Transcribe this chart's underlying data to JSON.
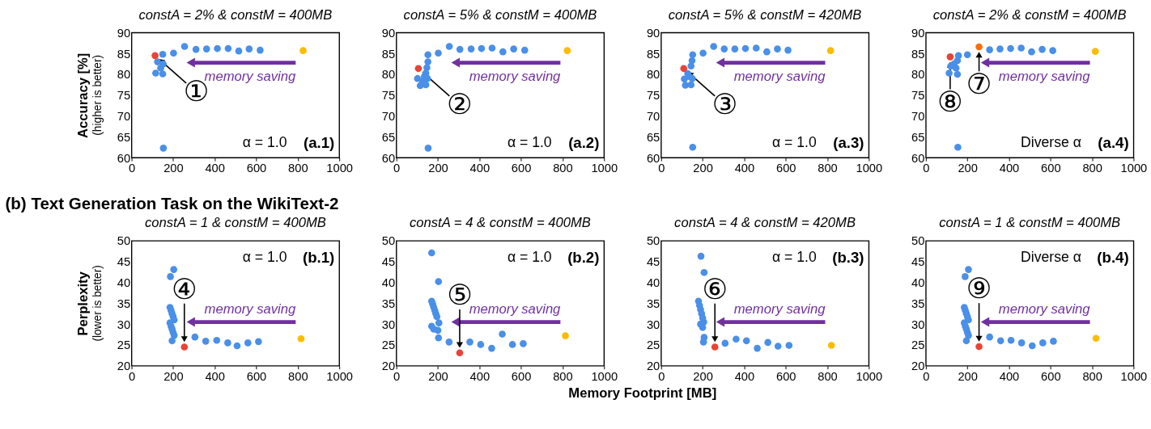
{
  "chart_data": [
    {
      "type": "scatter",
      "title": "constA = 2% & constM = 400MB",
      "ylabel": "Accuracy [%]",
      "xlim": [
        0,
        1000
      ],
      "xticks": [
        0,
        200,
        400,
        600,
        800,
        1000
      ],
      "ylim": [
        60,
        90
      ],
      "yticks": [
        60,
        65,
        70,
        75,
        80,
        85,
        90
      ],
      "marker": "circle",
      "series": [
        {
          "color": "#4a8fe8",
          "x": [
            116,
            150,
            125,
            140,
            150,
            152,
            153,
            202,
            255,
            310,
            361,
            413,
            465,
            516,
            566,
            619
          ],
          "values": [
            80.3,
            80.1,
            83,
            81.5,
            84.8,
            82.5,
            62.3,
            85.1,
            86.7,
            86.0,
            86.1,
            86.2,
            86.2,
            85.6,
            86.1,
            85.8
          ]
        },
        {
          "color": "#ea4335",
          "x": [
            113
          ],
          "values": [
            84.5
          ]
        },
        {
          "color": "#fbbc05",
          "x": [
            826
          ],
          "values": [
            85.7
          ]
        }
      ],
      "annotations": [
        "α = 1.0",
        "(a.1)",
        "memory saving",
        "(higher is better)",
        {
          "text": "①",
          "x": 113,
          "y": 84.5
        }
      ]
    },
    {
      "type": "scatter",
      "title": "constA = 5% & constM = 400MB",
      "xlim": [
        0,
        1000
      ],
      "xticks": [
        0,
        200,
        400,
        600,
        800,
        1000
      ],
      "ylim": [
        60,
        90
      ],
      "yticks": [
        60,
        65,
        70,
        75,
        80,
        85,
        90
      ],
      "marker": "circle",
      "series": [
        {
          "color": "#4a8fe8",
          "x": [
            152,
            152,
            147,
            142,
            102,
            115,
            142,
            126,
            135,
            150,
            153,
            202,
            255,
            306,
            360,
            410,
            461,
            513,
            565,
            618
          ],
          "values": [
            84.7,
            83,
            81.6,
            80.3,
            79,
            77.3,
            77.5,
            78.4,
            79.5,
            79,
            62.3,
            85.1,
            86.7,
            86,
            86.1,
            86.2,
            86.3,
            85.4,
            86.1,
            85.8
          ]
        },
        {
          "color": "#ea4335",
          "x": [
            106
          ],
          "values": [
            81.4
          ]
        },
        {
          "color": "#fbbc05",
          "x": [
            823
          ],
          "values": [
            85.7
          ]
        }
      ],
      "annotations": [
        "α = 1.0",
        "(a.2)",
        "memory saving",
        {
          "text": "②",
          "x": 106,
          "y": 81.4
        }
      ]
    },
    {
      "type": "scatter",
      "title": "constA = 5% & constM = 420MB",
      "xlim": [
        0,
        1000
      ],
      "xticks": [
        0,
        200,
        400,
        600,
        800,
        1000
      ],
      "ylim": [
        60,
        90
      ],
      "yticks": [
        60,
        65,
        70,
        75,
        80,
        85,
        90
      ],
      "marker": "circle",
      "series": [
        {
          "color": "#4a8fe8",
          "x": [
            152,
            149,
            144,
            112,
            117,
            144,
            128,
            135,
            150,
            152,
            202,
            253,
            304,
            355,
            406,
            458,
            509,
            560,
            611
          ],
          "values": [
            84.7,
            83.3,
            82,
            78.9,
            77.4,
            77.5,
            80.2,
            79.5,
            79,
            62.5,
            85.1,
            86.7,
            86.1,
            86.1,
            86.2,
            86.3,
            85.4,
            86.1,
            85.8
          ]
        },
        {
          "color": "#ea4335",
          "x": [
            109
          ],
          "values": [
            81.4
          ]
        },
        {
          "color": "#fbbc05",
          "x": [
            816
          ],
          "values": [
            85.7
          ]
        }
      ],
      "annotations": [
        "α = 1.0",
        "(a.3)",
        "memory saving",
        {
          "text": "③",
          "x": 109,
          "y": 81.4
        }
      ]
    },
    {
      "type": "scatter",
      "title": "constA = 2% & constM = 400MB",
      "xlim": [
        0,
        1000
      ],
      "xticks": [
        0,
        200,
        400,
        600,
        800,
        1000
      ],
      "ylim": [
        60,
        90
      ],
      "yticks": [
        60,
        65,
        70,
        75,
        80,
        85,
        90
      ],
      "marker": "circle",
      "series": [
        {
          "color": "#4a8fe8",
          "x": [
            112,
            152,
            152,
            136,
            145,
            157,
            120,
            154,
            200,
            307,
            357,
            408,
            459,
            509,
            560,
            611
          ],
          "values": [
            80.3,
            80,
            83.3,
            82.5,
            81.5,
            84.5,
            82,
            62.5,
            84.7,
            85.9,
            86.1,
            86.2,
            86.3,
            85.4,
            86,
            85.7
          ]
        },
        {
          "color": "#ea4335",
          "x": [
            117
          ],
          "values": [
            84.2
          ]
        },
        {
          "color": "#fa6e0a",
          "x": [
            256
          ],
          "values": [
            86.6
          ]
        },
        {
          "color": "#fbbc05",
          "x": [
            816
          ],
          "values": [
            85.5
          ]
        }
      ],
      "annotations": [
        "Diverse α",
        "(a.4)",
        "memory saving",
        {
          "text": "⑦",
          "x": 256,
          "y": 86.6
        },
        {
          "text": "⑧",
          "x": 117,
          "y": 84.2
        }
      ]
    },
    {
      "type": "scatter",
      "title": "constA = 1 & constM = 400MB",
      "ylabel": "Perplexity",
      "xlim": [
        0,
        1000
      ],
      "xticks": [
        0,
        200,
        400,
        600,
        800,
        1000
      ],
      "ylim": [
        20,
        50
      ],
      "yticks": [
        20,
        25,
        30,
        35,
        40,
        45,
        50
      ],
      "marker": "circle",
      "series": [
        {
          "color": "#4a8fe8",
          "x": [
            203,
            187,
            185,
            190,
            195,
            200,
            205,
            185,
            190,
            195,
            200,
            205,
            195,
            305,
            357,
            410,
            463,
            508,
            560,
            611
          ],
          "values": [
            43.1,
            41.4,
            34,
            33.3,
            32.5,
            31.8,
            31,
            30.3,
            29.5,
            28.8,
            28,
            27.3,
            26,
            26.9,
            25.9,
            26.1,
            25.5,
            24.8,
            25.5,
            25.8
          ]
        },
        {
          "color": "#ea4335",
          "x": [
            254
          ],
          "values": [
            24.5
          ]
        },
        {
          "color": "#fbbc05",
          "x": [
            816
          ],
          "values": [
            26.5
          ]
        }
      ],
      "annotations": [
        "α = 1.0",
        "(b.1)",
        "memory saving",
        "(lower is better)",
        "(b) Text Generation Task on the WikiText-2",
        {
          "text": "④",
          "x": 254,
          "y": 24.5
        }
      ]
    },
    {
      "type": "scatter",
      "title": "constA = 4 & constM = 400MB",
      "xlabel": "Memory Footprint [MB]",
      "xlim": [
        0,
        1000
      ],
      "xticks": [
        0,
        200,
        400,
        600,
        800,
        1000
      ],
      "ylim": [
        20,
        50
      ],
      "yticks": [
        20,
        25,
        30,
        35,
        40,
        45,
        50
      ],
      "marker": "circle",
      "series": [
        {
          "color": "#4a8fe8",
          "x": [
            170,
            203,
            170,
            175,
            180,
            185,
            190,
            195,
            205,
            170,
            180,
            200,
            203,
            254,
            354,
            406,
            459,
            510,
            559,
            611
          ],
          "values": [
            47.1,
            40.2,
            35.5,
            34.8,
            34,
            33.3,
            32.5,
            31.8,
            30.3,
            29.5,
            28.8,
            28.5,
            26.7,
            25.7,
            25.7,
            25.1,
            24.2,
            27.6,
            25.1,
            25.3
          ]
        },
        {
          "color": "#ea4335",
          "x": [
            305
          ],
          "values": [
            23.1
          ]
        },
        {
          "color": "#fbbc05",
          "x": [
            814
          ],
          "values": [
            27.2
          ]
        }
      ],
      "annotations": [
        "α = 1.0",
        "(b.2)",
        "memory saving",
        {
          "text": "⑤",
          "x": 305,
          "y": 23.1
        }
      ]
    },
    {
      "type": "scatter",
      "title": "constA = 4 & constM = 420MB",
      "xlim": [
        0,
        1000
      ],
      "xticks": [
        0,
        200,
        400,
        600,
        800,
        1000
      ],
      "ylim": [
        20,
        50
      ],
      "yticks": [
        20,
        25,
        30,
        35,
        40,
        45,
        50
      ],
      "marker": "circle",
      "series": [
        {
          "color": "#4a8fe8",
          "x": [
            192,
            207,
            180,
            185,
            190,
            195,
            200,
            205,
            190,
            200,
            207,
            204,
            308,
            361,
            411,
            463,
            514,
            563,
            616
          ],
          "values": [
            46.3,
            42.4,
            35.5,
            34.5,
            33.5,
            32.5,
            31.5,
            30.5,
            30,
            29.2,
            26.8,
            25.7,
            25.4,
            26.4,
            26,
            24.2,
            25.6,
            24.7,
            24.9
          ]
        },
        {
          "color": "#ea4335",
          "x": [
            259
          ],
          "values": [
            24.5
          ]
        },
        {
          "color": "#fbbc05",
          "x": [
            820
          ],
          "values": [
            24.9
          ]
        }
      ],
      "annotations": [
        "α = 1.0",
        "(b.3)",
        "memory saving",
        {
          "text": "⑥",
          "x": 259,
          "y": 24.5
        }
      ]
    },
    {
      "type": "scatter",
      "title": "constA = 1 & constM = 400MB",
      "xlim": [
        0,
        1000
      ],
      "xticks": [
        0,
        200,
        400,
        600,
        800,
        1000
      ],
      "ylim": [
        20,
        50
      ],
      "yticks": [
        20,
        25,
        30,
        35,
        40,
        45,
        50
      ],
      "marker": "circle",
      "series": [
        {
          "color": "#4a8fe8",
          "x": [
            205,
            189,
            185,
            190,
            195,
            200,
            205,
            185,
            190,
            195,
            200,
            205,
            195,
            307,
            360,
            410,
            461,
            512,
            563,
            614
          ],
          "values": [
            43.1,
            41.4,
            34,
            33.3,
            32.5,
            31.8,
            31,
            30.3,
            29.5,
            28.8,
            28,
            27.3,
            26,
            26.9,
            26,
            26.1,
            25.5,
            24.8,
            25.5,
            25.9
          ]
        },
        {
          "color": "#ea4335",
          "x": [
            256
          ],
          "values": [
            24.6
          ]
        },
        {
          "color": "#fbbc05",
          "x": [
            819
          ],
          "values": [
            26.6
          ]
        }
      ],
      "annotations": [
        "Diverse α",
        "(b.4)",
        "memory saving",
        {
          "text": "⑨",
          "x": 256,
          "y": 24.6
        }
      ]
    }
  ]
}
